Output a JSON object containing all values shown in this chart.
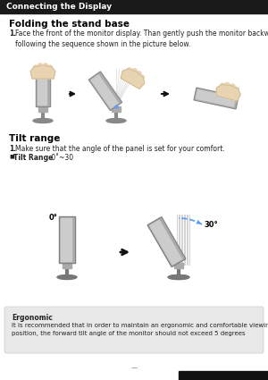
{
  "page_title": "Connecting the Display",
  "section1_title": "Folding the stand base",
  "section1_step": "1.",
  "section1_text": "Face the front of the monitor display. Than gently push the monitor backwards,\nfollowing the sequence shown in the picture below.",
  "section2_title": "Tilt range",
  "section2_step": "1.",
  "section2_text": "Make sure that the angle of the panel is set for your comfort.",
  "section2_bullet_bold": "Tilt Range",
  "section2_bullet_normal": " : 0˚~30",
  "ergonomic_title": "Ergonomic",
  "ergonomic_text": "It is recommended that in order to maintain an ergonomic and comfortable viewing\nposition, the forward tilt angle of the monitor should not exceed 5 degrees",
  "bg_color": "#ffffff",
  "title_bar_color": "#1a1a1a",
  "title_text_color": "#ffffff",
  "header_font_color": "#000000",
  "body_font_color": "#222222",
  "ergonomic_bg": "#e8e8e8",
  "ergonomic_border": "#cccccc",
  "monitor_dark": "#888888",
  "monitor_mid": "#aaaaaa",
  "monitor_light": "#cccccc",
  "monitor_face": "#bbbbbb",
  "hand_color": "#e8d4b0",
  "arc_color": "#5599ff",
  "arrow_color": "#111111",
  "page_number_color": "#555555",
  "bottom_bar_color": "#111111"
}
